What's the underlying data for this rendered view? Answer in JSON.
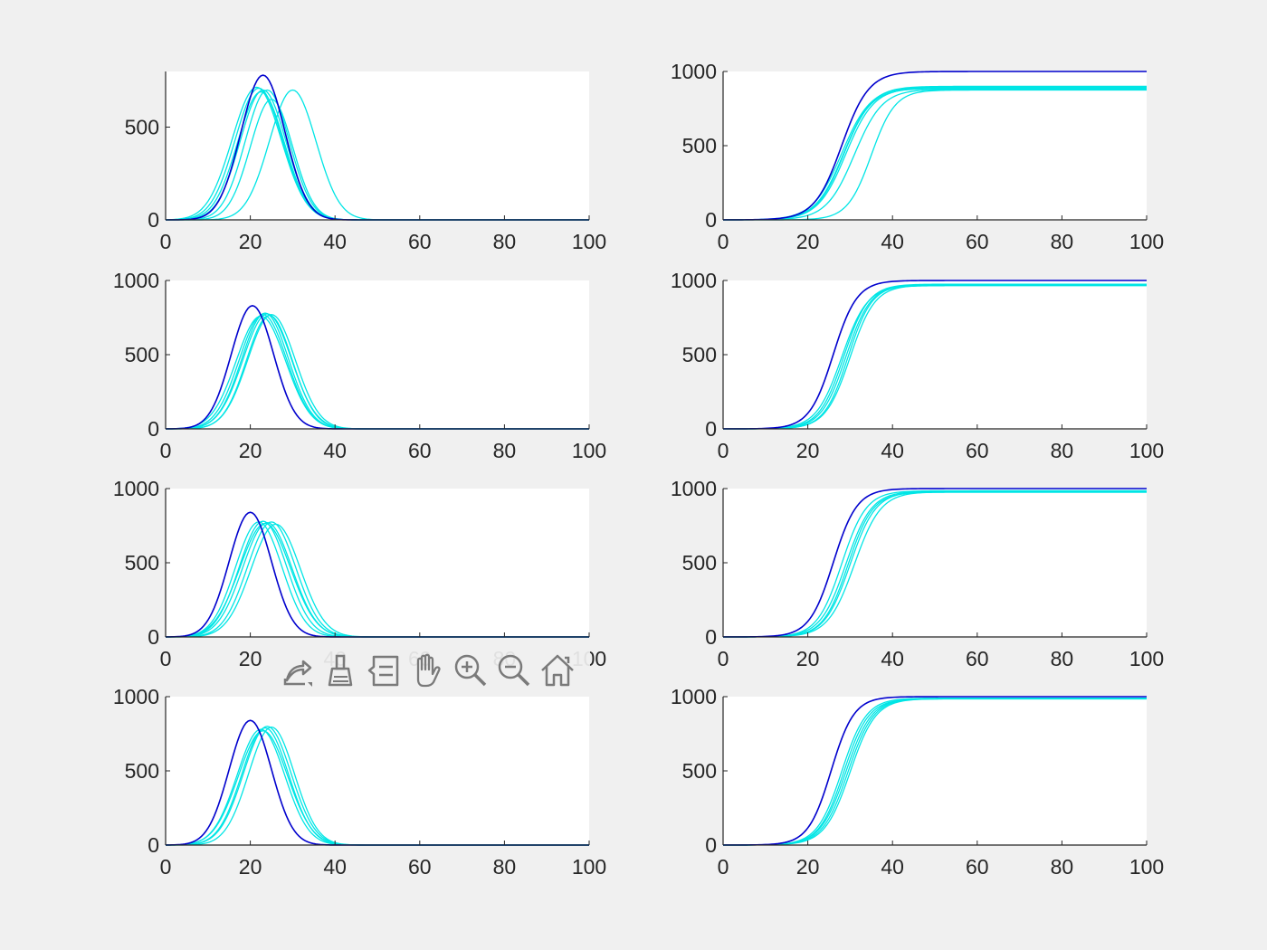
{
  "figure": {
    "background": "#f0f0f0",
    "axes_background": "#ffffff",
    "axis_color": "#262626"
  },
  "colors": {
    "reference": "#0000cd",
    "ensemble": "#00e5e5"
  },
  "toolbar": {
    "icons": [
      "export-icon",
      "brush-icon",
      "data-tips-icon",
      "pan-icon",
      "zoom-in-icon",
      "zoom-out-icon",
      "home-icon"
    ]
  },
  "chart_data": [
    {
      "type": "line",
      "title": "",
      "xlabel": "",
      "ylabel": "",
      "grid": false,
      "xlim": [
        0,
        100
      ],
      "ylim": [
        0,
        800
      ],
      "xticks": [
        0,
        20,
        40,
        60,
        80,
        100
      ],
      "yticks": [
        0,
        500
      ],
      "series_kind": "gaussian",
      "series": [
        {
          "role": "reference",
          "peak_x": 23,
          "peak_y": 780,
          "width": 5.2
        },
        {
          "role": "ensemble",
          "peak_x": 22,
          "peak_y": 710,
          "width": 5.6
        },
        {
          "role": "ensemble",
          "peak_x": 23,
          "peak_y": 700,
          "width": 5.4
        },
        {
          "role": "ensemble",
          "peak_x": 21.5,
          "peak_y": 715,
          "width": 5.8
        },
        {
          "role": "ensemble",
          "peak_x": 24,
          "peak_y": 700,
          "width": 5.2
        },
        {
          "role": "ensemble",
          "peak_x": 22.5,
          "peak_y": 690,
          "width": 5.5
        },
        {
          "role": "ensemble",
          "peak_x": 25,
          "peak_y": 650,
          "width": 5.0
        },
        {
          "role": "ensemble",
          "peak_x": 30,
          "peak_y": 700,
          "width": 5.5
        }
      ]
    },
    {
      "type": "line",
      "title": "",
      "xlabel": "",
      "ylabel": "",
      "grid": false,
      "xlim": [
        0,
        100
      ],
      "ylim": [
        0,
        1000
      ],
      "xticks": [
        0,
        20,
        40,
        60,
        80,
        100
      ],
      "yticks": [
        0,
        500,
        1000
      ],
      "series_kind": "logistic",
      "series": [
        {
          "role": "reference",
          "mid_x": 28,
          "final_y": 1000,
          "scale": 3.2
        },
        {
          "role": "ensemble",
          "mid_x": 28.5,
          "final_y": 900,
          "scale": 3.3
        },
        {
          "role": "ensemble",
          "mid_x": 28,
          "final_y": 895,
          "scale": 3.4
        },
        {
          "role": "ensemble",
          "mid_x": 29,
          "final_y": 890,
          "scale": 3.3
        },
        {
          "role": "ensemble",
          "mid_x": 28.5,
          "final_y": 885,
          "scale": 3.2
        },
        {
          "role": "ensemble",
          "mid_x": 31,
          "final_y": 880,
          "scale": 3.3
        },
        {
          "role": "ensemble",
          "mid_x": 35,
          "final_y": 875,
          "scale": 2.8
        }
      ]
    },
    {
      "type": "line",
      "title": "",
      "xlabel": "",
      "ylabel": "",
      "grid": false,
      "xlim": [
        0,
        100
      ],
      "ylim": [
        0,
        1000
      ],
      "xticks": [
        0,
        20,
        40,
        60,
        80,
        100
      ],
      "yticks": [
        0,
        500,
        1000
      ],
      "series_kind": "gaussian",
      "series": [
        {
          "role": "reference",
          "peak_x": 20.5,
          "peak_y": 830,
          "width": 5.0
        },
        {
          "role": "ensemble",
          "peak_x": 23,
          "peak_y": 770,
          "width": 5.6
        },
        {
          "role": "ensemble",
          "peak_x": 23.5,
          "peak_y": 780,
          "width": 5.5
        },
        {
          "role": "ensemble",
          "peak_x": 24,
          "peak_y": 775,
          "width": 5.7
        },
        {
          "role": "ensemble",
          "peak_x": 24.5,
          "peak_y": 765,
          "width": 5.4
        },
        {
          "role": "ensemble",
          "peak_x": 25,
          "peak_y": 770,
          "width": 5.6
        },
        {
          "role": "ensemble",
          "peak_x": 22.5,
          "peak_y": 760,
          "width": 5.8
        }
      ]
    },
    {
      "type": "line",
      "title": "",
      "xlabel": "",
      "ylabel": "",
      "grid": false,
      "xlim": [
        0,
        100
      ],
      "ylim": [
        0,
        1000
      ],
      "xticks": [
        0,
        20,
        40,
        60,
        80,
        100
      ],
      "yticks": [
        0,
        500,
        1000
      ],
      "series_kind": "logistic",
      "series": [
        {
          "role": "reference",
          "mid_x": 26,
          "final_y": 1000,
          "scale": 2.8
        },
        {
          "role": "ensemble",
          "mid_x": 28.5,
          "final_y": 975,
          "scale": 2.9
        },
        {
          "role": "ensemble",
          "mid_x": 29,
          "final_y": 972,
          "scale": 2.9
        },
        {
          "role": "ensemble",
          "mid_x": 29.5,
          "final_y": 970,
          "scale": 2.8
        },
        {
          "role": "ensemble",
          "mid_x": 30,
          "final_y": 968,
          "scale": 2.9
        },
        {
          "role": "ensemble",
          "mid_x": 28,
          "final_y": 965,
          "scale": 3.0
        }
      ]
    },
    {
      "type": "line",
      "title": "",
      "xlabel": "",
      "ylabel": "",
      "grid": false,
      "xlim": [
        0,
        100
      ],
      "ylim": [
        0,
        1000
      ],
      "xticks": [
        0,
        20,
        40,
        60,
        80,
        100
      ],
      "yticks": [
        0,
        500,
        1000
      ],
      "series_kind": "gaussian",
      "series": [
        {
          "role": "reference",
          "peak_x": 20,
          "peak_y": 840,
          "width": 5.0
        },
        {
          "role": "ensemble",
          "peak_x": 22,
          "peak_y": 775,
          "width": 5.5
        },
        {
          "role": "ensemble",
          "peak_x": 23,
          "peak_y": 780,
          "width": 5.6
        },
        {
          "role": "ensemble",
          "peak_x": 24,
          "peak_y": 770,
          "width": 5.8
        },
        {
          "role": "ensemble",
          "peak_x": 25,
          "peak_y": 775,
          "width": 5.7
        },
        {
          "role": "ensemble",
          "peak_x": 26,
          "peak_y": 760,
          "width": 5.8
        },
        {
          "role": "ensemble",
          "peak_x": 23.5,
          "peak_y": 765,
          "width": 6.0
        }
      ]
    },
    {
      "type": "line",
      "title": "",
      "xlabel": "",
      "ylabel": "",
      "grid": false,
      "xlim": [
        0,
        100
      ],
      "ylim": [
        0,
        1000
      ],
      "xticks": [
        0,
        20,
        40,
        60,
        80,
        100
      ],
      "yticks": [
        0,
        500,
        1000
      ],
      "series_kind": "logistic",
      "series": [
        {
          "role": "reference",
          "mid_x": 26,
          "final_y": 1000,
          "scale": 2.8
        },
        {
          "role": "ensemble",
          "mid_x": 28,
          "final_y": 985,
          "scale": 2.9
        },
        {
          "role": "ensemble",
          "mid_x": 29,
          "final_y": 982,
          "scale": 3.0
        },
        {
          "role": "ensemble",
          "mid_x": 30,
          "final_y": 980,
          "scale": 3.0
        },
        {
          "role": "ensemble",
          "mid_x": 31,
          "final_y": 978,
          "scale": 3.1
        },
        {
          "role": "ensemble",
          "mid_x": 29.5,
          "final_y": 975,
          "scale": 2.9
        }
      ]
    },
    {
      "type": "line",
      "title": "",
      "xlabel": "",
      "ylabel": "",
      "grid": false,
      "xlim": [
        0,
        100
      ],
      "ylim": [
        0,
        1000
      ],
      "xticks": [
        0,
        20,
        40,
        60,
        80,
        100
      ],
      "yticks": [
        0,
        500,
        1000
      ],
      "series_kind": "gaussian",
      "series": [
        {
          "role": "reference",
          "peak_x": 20,
          "peak_y": 840,
          "width": 5.0
        },
        {
          "role": "ensemble",
          "peak_x": 22.5,
          "peak_y": 780,
          "width": 5.6
        },
        {
          "role": "ensemble",
          "peak_x": 23.5,
          "peak_y": 790,
          "width": 5.5
        },
        {
          "role": "ensemble",
          "peak_x": 24,
          "peak_y": 800,
          "width": 5.6
        },
        {
          "role": "ensemble",
          "peak_x": 25,
          "peak_y": 795,
          "width": 5.4
        },
        {
          "role": "ensemble",
          "peak_x": 23,
          "peak_y": 770,
          "width": 5.8
        }
      ]
    },
    {
      "type": "line",
      "title": "",
      "xlabel": "",
      "ylabel": "",
      "grid": false,
      "xlim": [
        0,
        100
      ],
      "ylim": [
        0,
        1000
      ],
      "xticks": [
        0,
        20,
        40,
        60,
        80,
        100
      ],
      "yticks": [
        0,
        500,
        1000
      ],
      "series_kind": "logistic",
      "series": [
        {
          "role": "reference",
          "mid_x": 25.5,
          "final_y": 1000,
          "scale": 2.7
        },
        {
          "role": "ensemble",
          "mid_x": 28,
          "final_y": 990,
          "scale": 2.9
        },
        {
          "role": "ensemble",
          "mid_x": 29,
          "final_y": 988,
          "scale": 3.0
        },
        {
          "role": "ensemble",
          "mid_x": 29.5,
          "final_y": 987,
          "scale": 3.0
        },
        {
          "role": "ensemble",
          "mid_x": 30,
          "final_y": 986,
          "scale": 3.0
        },
        {
          "role": "ensemble",
          "mid_x": 28.5,
          "final_y": 985,
          "scale": 2.9
        }
      ]
    }
  ]
}
